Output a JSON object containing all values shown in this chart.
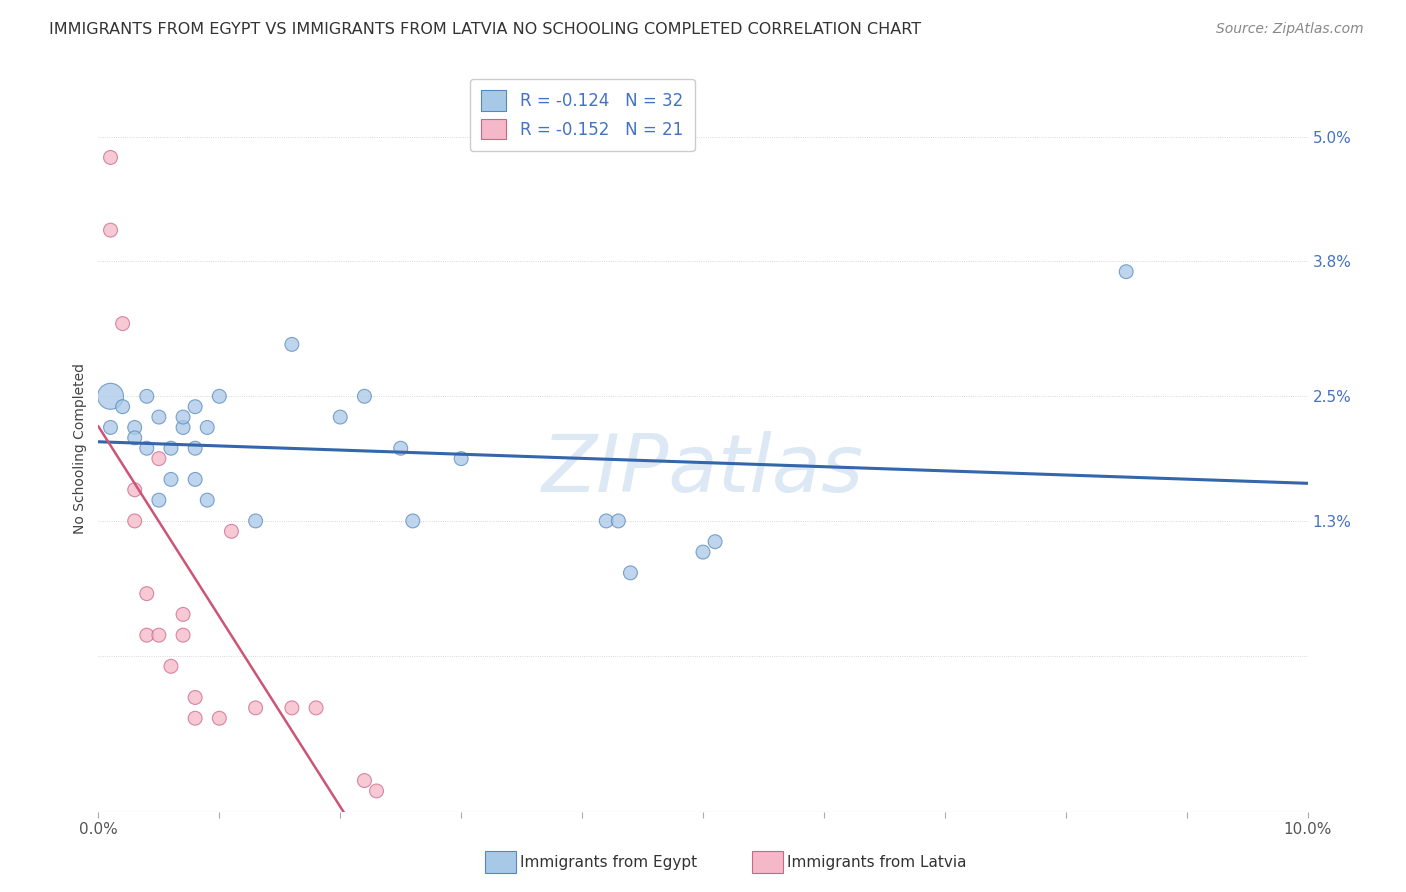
{
  "title": "IMMIGRANTS FROM EGYPT VS IMMIGRANTS FROM LATVIA NO SCHOOLING COMPLETED CORRELATION CHART",
  "source": "Source: ZipAtlas.com",
  "ylabel": "No Schooling Completed",
  "legend_label1": "Immigrants from Egypt",
  "legend_label2": "Immigrants from Latvia",
  "R1": -0.124,
  "N1": 32,
  "R2": -0.152,
  "N2": 21,
  "color1": "#a8c8e8",
  "color2": "#f4b8c8",
  "color1_edge": "#5588bb",
  "color2_edge": "#cc6688",
  "line_color1": "#3366aa",
  "line_color2": "#cc5577",
  "xlim": [
    0.0,
    0.1
  ],
  "ylim": [
    -0.015,
    0.055
  ],
  "yticks": [
    0.0,
    0.013,
    0.025,
    0.038,
    0.05
  ],
  "ytick_labels": [
    "",
    "1.3%",
    "2.5%",
    "3.8%",
    "5.0%"
  ],
  "xticks": [
    0.0,
    0.01,
    0.02,
    0.03,
    0.04,
    0.05,
    0.06,
    0.07,
    0.08,
    0.09,
    0.1
  ],
  "xtick_labels": [
    "0.0%",
    "",
    "",
    "",
    "",
    "",
    "",
    "",
    "",
    "",
    "10.0%"
  ],
  "egypt_x": [
    0.001,
    0.001,
    0.002,
    0.003,
    0.003,
    0.004,
    0.004,
    0.005,
    0.005,
    0.006,
    0.006,
    0.007,
    0.007,
    0.008,
    0.008,
    0.008,
    0.009,
    0.009,
    0.01,
    0.013,
    0.016,
    0.02,
    0.022,
    0.025,
    0.026,
    0.03,
    0.042,
    0.043,
    0.044,
    0.05,
    0.051,
    0.085
  ],
  "egypt_y": [
    0.025,
    0.022,
    0.024,
    0.022,
    0.021,
    0.025,
    0.02,
    0.023,
    0.015,
    0.02,
    0.017,
    0.022,
    0.023,
    0.02,
    0.017,
    0.024,
    0.015,
    0.022,
    0.025,
    0.013,
    0.03,
    0.023,
    0.025,
    0.02,
    0.013,
    0.019,
    0.013,
    0.013,
    0.008,
    0.01,
    0.011,
    0.037
  ],
  "egypt_size": [
    350,
    100,
    100,
    100,
    100,
    100,
    100,
    100,
    100,
    100,
    100,
    100,
    100,
    100,
    100,
    100,
    100,
    100,
    100,
    100,
    100,
    100,
    100,
    100,
    100,
    100,
    100,
    100,
    100,
    100,
    100,
    100
  ],
  "latvia_x": [
    0.001,
    0.001,
    0.002,
    0.003,
    0.003,
    0.004,
    0.004,
    0.005,
    0.005,
    0.006,
    0.007,
    0.007,
    0.008,
    0.008,
    0.01,
    0.011,
    0.013,
    0.016,
    0.018,
    0.022,
    0.023
  ],
  "latvia_y": [
    0.048,
    0.041,
    0.032,
    0.016,
    0.013,
    0.006,
    0.002,
    0.019,
    0.002,
    -0.001,
    0.004,
    0.002,
    -0.004,
    -0.006,
    -0.006,
    0.012,
    -0.005,
    -0.005,
    -0.005,
    -0.012,
    -0.013
  ],
  "latvia_size": [
    100,
    100,
    100,
    100,
    100,
    100,
    100,
    100,
    100,
    100,
    100,
    100,
    100,
    100,
    100,
    100,
    100,
    100,
    100,
    100,
    100
  ],
  "watermark": "ZIPatlas",
  "background_color": "#ffffff",
  "grid_color": "#cccccc",
  "watermark_color": "#dde8f5"
}
